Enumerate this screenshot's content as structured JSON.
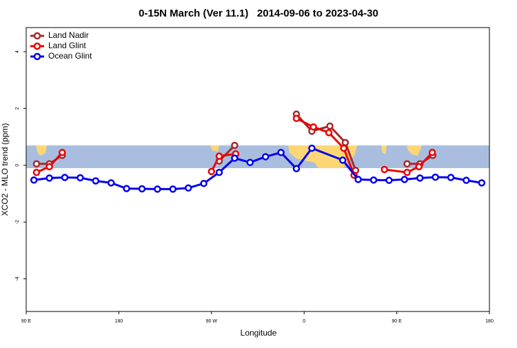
{
  "chart_data": {
    "type": "line",
    "title": "0-15N March (Ver 11.1)   2014-09-06 to 2023-04-30",
    "x_label": "Longitude",
    "y_label": "XCO2 - MLO trend (ppm)",
    "xlim": [
      90,
      540
    ],
    "xticks": [
      {
        "value": 90,
        "label": "90 E"
      },
      {
        "value": 180,
        "label": "180"
      },
      {
        "value": 270,
        "label": "90 W"
      },
      {
        "value": 360,
        "label": "0"
      },
      {
        "value": 450,
        "label": "90 E"
      },
      {
        "value": 540,
        "label": "180"
      }
    ],
    "ylim": [
      -5.15,
      4.85
    ],
    "yticks": [
      -4,
      -2,
      0,
      2,
      4
    ],
    "legend": "top-left",
    "series": [
      {
        "name": "Land Nadir",
        "color": "#a52a2a",
        "x": [
          100,
          112.5,
          125,
          null,
          277.5,
          292.5,
          null,
          352.5,
          367.5,
          385,
          400,
          410,
          null,
          460,
          472.5,
          485
        ],
        "values": [
          0.05,
          0.05,
          0.35,
          null,
          0.15,
          0.7,
          null,
          1.8,
          1.2,
          1.38,
          0.8,
          -0.18,
          null,
          0.05,
          0.05,
          0.35
        ]
      },
      {
        "name": "Land Glint",
        "color": "#ee0000",
        "x": [
          100,
          112.5,
          125,
          null,
          270,
          277.5,
          293.5,
          null,
          352.5,
          369,
          384,
          398.5,
          408.5,
          null,
          438,
          460,
          471.5,
          484.5
        ],
        "values": [
          -0.25,
          -0.05,
          0.45,
          null,
          -0.22,
          0.32,
          0.4,
          null,
          1.65,
          1.35,
          1.15,
          0.6,
          -0.35,
          null,
          -0.15,
          -0.25,
          -0.05,
          0.45
        ]
      },
      {
        "name": "Ocean Glint",
        "color": "#0000ee",
        "x": [
          97.5,
          112.5,
          127.5,
          142.5,
          157.5,
          172.5,
          187.5,
          202.5,
          217.5,
          232.5,
          247.5,
          262.5,
          277.5,
          292.5,
          307.5,
          322.5,
          337.5,
          352.5,
          367.5,
          397.5,
          412.5,
          427.5,
          442.5,
          457.5,
          472.5,
          487.5,
          502.5,
          517.5,
          532.5
        ],
        "values": [
          -0.52,
          -0.45,
          -0.43,
          -0.44,
          -0.55,
          -0.62,
          -0.82,
          -0.83,
          -0.84,
          -0.84,
          -0.8,
          -0.64,
          -0.25,
          0.25,
          0.1,
          0.3,
          0.45,
          -0.12,
          0.6,
          0.18,
          -0.5,
          -0.52,
          -0.53,
          -0.5,
          -0.45,
          -0.42,
          -0.43,
          -0.53,
          -0.62
        ]
      }
    ]
  }
}
